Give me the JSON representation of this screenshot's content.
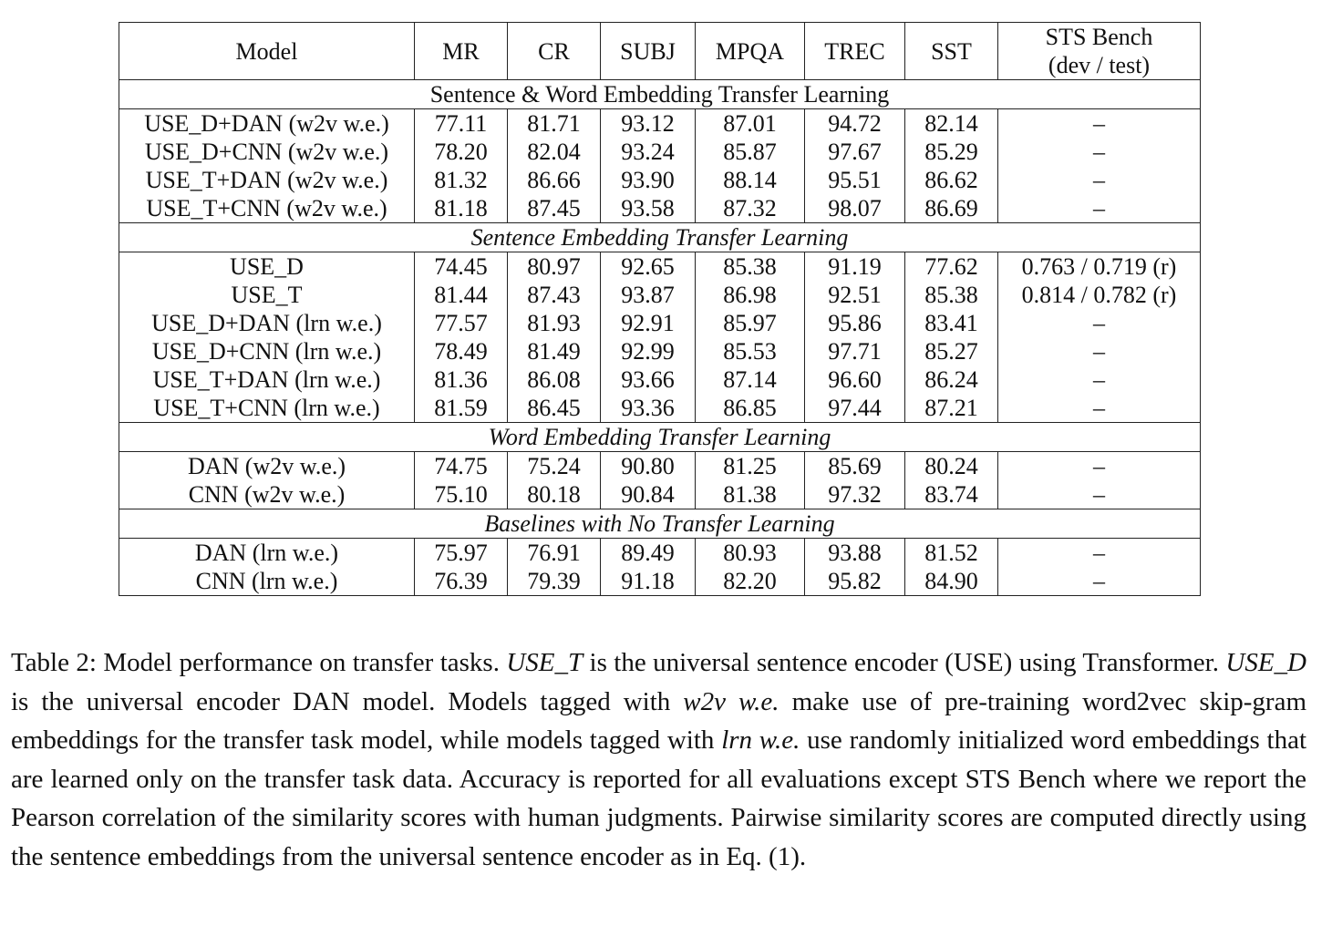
{
  "table": {
    "headers": [
      "Model",
      "MR",
      "CR",
      "SUBJ",
      "MPQA",
      "TREC",
      "SST"
    ],
    "sts_header_line1": "STS Bench",
    "sts_header_line2": "(dev / test)",
    "sections": [
      {
        "title": "Sentence & Word Embedding Transfer Learning",
        "italic": false,
        "rows": [
          [
            "USE_D+DAN (w2v w.e.)",
            "77.11",
            "81.71",
            "93.12",
            "87.01",
            "94.72",
            "82.14",
            "–"
          ],
          [
            "USE_D+CNN (w2v w.e.)",
            "78.20",
            "82.04",
            "93.24",
            "85.87",
            "97.67",
            "85.29",
            "–"
          ],
          [
            "USE_T+DAN (w2v w.e.)",
            "81.32",
            "86.66",
            "93.90",
            "88.14",
            "95.51",
            "86.62",
            "–"
          ],
          [
            "USE_T+CNN (w2v w.e.)",
            "81.18",
            "87.45",
            "93.58",
            "87.32",
            "98.07",
            "86.69",
            "–"
          ]
        ]
      },
      {
        "title": "Sentence Embedding Transfer Learning",
        "italic": true,
        "rows": [
          [
            "USE_D",
            "74.45",
            "80.97",
            "92.65",
            "85.38",
            "91.19",
            "77.62",
            "0.763 / 0.719 (r)"
          ],
          [
            "USE_T",
            "81.44",
            "87.43",
            "93.87",
            "86.98",
            "92.51",
            "85.38",
            "0.814 / 0.782 (r)"
          ],
          [
            "USE_D+DAN (lrn w.e.)",
            "77.57",
            "81.93",
            "92.91",
            "85.97",
            "95.86",
            "83.41",
            "–"
          ],
          [
            "USE_D+CNN (lrn w.e.)",
            "78.49",
            "81.49",
            "92.99",
            "85.53",
            "97.71",
            "85.27",
            "–"
          ],
          [
            "USE_T+DAN (lrn w.e.)",
            "81.36",
            "86.08",
            "93.66",
            "87.14",
            "96.60",
            "86.24",
            "–"
          ],
          [
            "USE_T+CNN (lrn w.e.)",
            "81.59",
            "86.45",
            "93.36",
            "86.85",
            "97.44",
            "87.21",
            "–"
          ]
        ]
      },
      {
        "title": "Word Embedding Transfer Learning",
        "italic": true,
        "rows": [
          [
            "DAN (w2v w.e.)",
            "74.75",
            "75.24",
            "90.80",
            "81.25",
            "85.69",
            "80.24",
            "–"
          ],
          [
            "CNN (w2v w.e.)",
            "75.10",
            "80.18",
            "90.84",
            "81.38",
            "97.32",
            "83.74",
            "–"
          ]
        ]
      },
      {
        "title": "Baselines with No Transfer Learning",
        "italic": true,
        "rows": [
          [
            "DAN (lrn w.e.)",
            "75.97",
            "76.91",
            "89.49",
            "80.93",
            "93.88",
            "81.52",
            "–"
          ],
          [
            "CNN (lrn w.e.)",
            "76.39",
            "79.39",
            "91.18",
            "82.20",
            "95.82",
            "84.90",
            "–"
          ]
        ]
      }
    ]
  },
  "caption": {
    "p1": "Table 2: Model performance on transfer tasks. ",
    "em1": "USE_T",
    "p2": " is the universal sentence encoder (USE) using Transformer. ",
    "em2": "USE_D",
    "p3": " is the universal encoder DAN model. Models tagged with ",
    "em3": "w2v w.e.",
    "p4": " make use of pre-training word2vec skip-gram embeddings for the transfer task model, while models tagged with ",
    "em4": "lrn w.e.",
    "p5": " use randomly initialized word embeddings that are learned only on the transfer task data. Accuracy is reported for all evaluations except STS Bench where we report the Pearson correlation of the similarity scores with human judgments. Pairwise similarity scores are computed directly using the sentence embeddings from the universal sentence encoder as in Eq. (1)."
  }
}
